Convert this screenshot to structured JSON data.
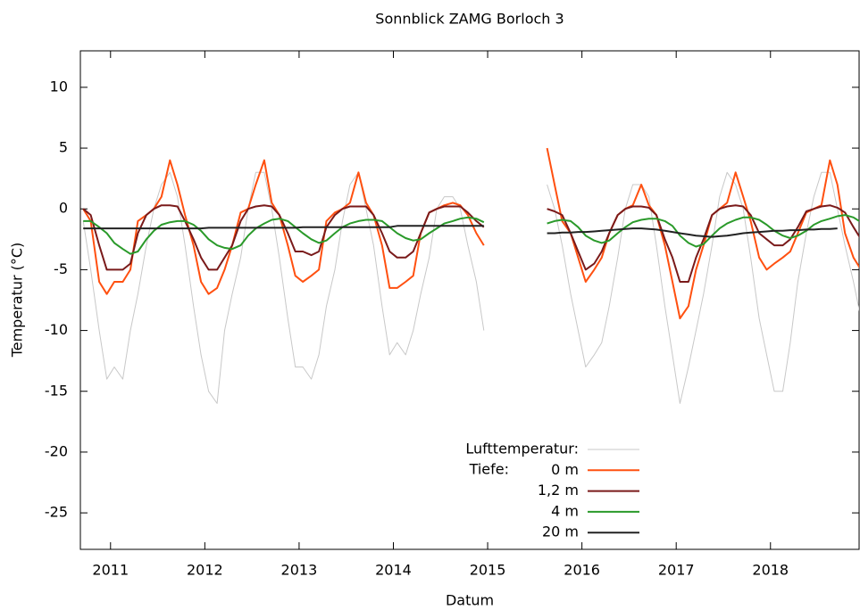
{
  "chart_data": {
    "type": "line",
    "title": "Sonnblick ZAMG Borloch 3",
    "xlabel": "Datum",
    "ylabel": "Temperatur (°C)",
    "legend_label": "Tiefe:",
    "legend_position": "lower center",
    "grid": false,
    "xlim": [
      2010.68,
      2018.94
    ],
    "xticks": [
      2011,
      2012,
      2013,
      2014,
      2015,
      2016,
      2017,
      2018
    ],
    "ylim": [
      -28,
      13
    ],
    "yticks": [
      10,
      5,
      0,
      -5,
      -10,
      -15,
      -20,
      -25
    ],
    "x": [
      2010.71,
      2010.79,
      2010.88,
      2010.96,
      2011.04,
      2011.13,
      2011.21,
      2011.29,
      2011.38,
      2011.46,
      2011.54,
      2011.63,
      2011.71,
      2011.79,
      2011.88,
      2011.96,
      2012.04,
      2012.13,
      2012.21,
      2012.29,
      2012.38,
      2012.46,
      2012.54,
      2012.63,
      2012.71,
      2012.79,
      2012.88,
      2012.96,
      2013.04,
      2013.13,
      2013.21,
      2013.29,
      2013.38,
      2013.46,
      2013.54,
      2013.63,
      2013.71,
      2013.79,
      2013.88,
      2013.96,
      2014.04,
      2014.13,
      2014.21,
      2014.29,
      2014.38,
      2014.46,
      2014.54,
      2014.63,
      2014.71,
      2014.79,
      2014.88,
      2014.96,
      2015.3,
      2015.63,
      2015.71,
      2015.79,
      2015.88,
      2015.96,
      2016.04,
      2016.13,
      2016.21,
      2016.29,
      2016.38,
      2016.46,
      2016.54,
      2016.63,
      2016.71,
      2016.79,
      2016.88,
      2016.96,
      2017.04,
      2017.13,
      2017.21,
      2017.29,
      2017.38,
      2017.46,
      2017.54,
      2017.63,
      2017.71,
      2017.79,
      2017.88,
      2017.96,
      2018.04,
      2018.13,
      2018.21,
      2018.29,
      2018.38,
      2018.46,
      2018.54,
      2018.63,
      2018.71,
      2018.79,
      2018.88,
      2018.96
    ],
    "series": [
      {
        "name": "Lufttemperatur:",
        "color": "#c8c8c8",
        "width": 1,
        "values": [
          -1,
          -5,
          -10,
          -14,
          -13,
          -14,
          -10,
          -7,
          -3,
          0,
          2,
          3,
          1,
          -3,
          -8,
          -12,
          -15,
          -16,
          -10,
          -7,
          -4,
          0,
          3,
          3,
          0,
          -4,
          -9,
          -13,
          -13,
          -14,
          -12,
          -8,
          -5,
          -1,
          2,
          3,
          0,
          -3,
          -8,
          -12,
          -11,
          -12,
          -10,
          -7,
          -4,
          0,
          1,
          1,
          0,
          -3,
          -6,
          -10,
          null,
          2,
          0,
          -3,
          -7,
          -10,
          -13,
          -12,
          -11,
          -8,
          -4,
          0,
          2,
          2,
          1,
          -3,
          -8,
          -12,
          -16,
          -13,
          -10,
          -7,
          -3,
          1,
          3,
          2,
          0,
          -4,
          -9,
          -12,
          -15,
          -15,
          -11,
          -6,
          -2,
          1,
          3,
          3,
          0,
          -3,
          -6,
          -9
        ]
      },
      {
        "name": "0 m",
        "color": "#ff5010",
        "width": 2,
        "values": [
          0,
          -1,
          -6,
          -7,
          -6,
          -6,
          -5,
          -1,
          -0.5,
          0,
          1,
          4,
          2,
          -0.5,
          -3,
          -6,
          -7,
          -6.5,
          -5,
          -3,
          -0.3,
          0,
          2,
          4,
          0.5,
          -0.5,
          -3,
          -5.5,
          -6,
          -5.5,
          -5,
          -1,
          -0.3,
          0,
          0.5,
          3,
          0.5,
          -0.5,
          -3,
          -6.5,
          -6.5,
          -6,
          -5.5,
          -2,
          -0.3,
          0,
          0.3,
          0.5,
          0.3,
          -0.5,
          -2,
          -3,
          null,
          5,
          2,
          -1,
          -2,
          -4,
          -6,
          -5,
          -4,
          -2,
          -0.5,
          0,
          0.3,
          2,
          0.3,
          -0.5,
          -3,
          -6,
          -9,
          -8,
          -5,
          -3,
          -0.5,
          0,
          0.5,
          3,
          1,
          -1,
          -4,
          -5,
          -4.5,
          -4,
          -3.5,
          -2,
          -0.3,
          0,
          0.3,
          4,
          2,
          -2,
          -4,
          -5
        ]
      },
      {
        "name": "1,2 m",
        "color": "#7a1a1a",
        "width": 2,
        "values": [
          0,
          -0.5,
          -3,
          -5,
          -5,
          -5,
          -4.5,
          -2,
          -0.5,
          0,
          0.3,
          0.3,
          0.2,
          -1,
          -2.5,
          -4,
          -5,
          -5,
          -4,
          -3,
          -1,
          0,
          0.2,
          0.3,
          0.2,
          -0.5,
          -2,
          -3.5,
          -3.5,
          -3.8,
          -3.5,
          -1.5,
          -0.5,
          0,
          0.2,
          0.2,
          0.2,
          -0.5,
          -2,
          -3.5,
          -4,
          -4,
          -3.5,
          -2,
          -0.3,
          0,
          0.2,
          0.2,
          0.2,
          -0.3,
          -1,
          -1.5,
          null,
          0,
          -0.2,
          -0.5,
          -2,
          -3.5,
          -5,
          -4.5,
          -3.5,
          -2,
          -0.5,
          0,
          0.2,
          0.2,
          0.1,
          -0.5,
          -2.5,
          -4,
          -6,
          -6,
          -4,
          -2.5,
          -0.5,
          0,
          0.2,
          0.3,
          0.2,
          -0.5,
          -2,
          -2.5,
          -3,
          -3,
          -2.5,
          -1.5,
          -0.2,
          0,
          0.2,
          0.3,
          0.1,
          -0.3,
          -1.5,
          -2.5
        ]
      },
      {
        "name": "4 m",
        "color": "#2a9a2a",
        "width": 2,
        "values": [
          -1,
          -1,
          -1.5,
          -2,
          -2.8,
          -3.3,
          -3.7,
          -3.5,
          -2.5,
          -1.8,
          -1.3,
          -1.1,
          -1,
          -1,
          -1.3,
          -1.8,
          -2.5,
          -3,
          -3.2,
          -3.3,
          -3,
          -2.2,
          -1.6,
          -1.2,
          -0.9,
          -0.8,
          -1,
          -1.5,
          -2,
          -2.5,
          -2.8,
          -2.6,
          -2,
          -1.5,
          -1.2,
          -1,
          -0.9,
          -0.9,
          -1,
          -1.5,
          -2,
          -2.4,
          -2.6,
          -2.5,
          -2,
          -1.6,
          -1.2,
          -1,
          -0.8,
          -0.7,
          -0.8,
          -1.1,
          null,
          -1.2,
          -1,
          -0.9,
          -1,
          -1.5,
          -2.2,
          -2.6,
          -2.8,
          -2.6,
          -2,
          -1.5,
          -1.1,
          -0.9,
          -0.8,
          -0.8,
          -1,
          -1.4,
          -2.2,
          -2.8,
          -3.1,
          -2.9,
          -2.2,
          -1.6,
          -1.2,
          -0.9,
          -0.7,
          -0.7,
          -0.9,
          -1.3,
          -1.8,
          -2.2,
          -2.4,
          -2.2,
          -1.8,
          -1.3,
          -1,
          -0.8,
          -0.6,
          -0.5,
          -0.7,
          -1.1
        ]
      },
      {
        "name": "20 m",
        "color": "#222222",
        "width": 2,
        "values": [
          -1.6,
          -1.6,
          -1.6,
          -1.6,
          -1.6,
          -1.6,
          -1.6,
          -1.6,
          -1.6,
          -1.6,
          -1.6,
          -1.6,
          -1.6,
          -1.6,
          -1.6,
          -1.6,
          -1.55,
          -1.55,
          -1.55,
          -1.55,
          -1.55,
          -1.55,
          -1.55,
          -1.55,
          -1.55,
          -1.55,
          -1.55,
          -1.55,
          -1.5,
          -1.5,
          -1.5,
          -1.5,
          -1.5,
          -1.5,
          -1.5,
          -1.5,
          -1.5,
          -1.5,
          -1.5,
          -1.5,
          -1.4,
          -1.4,
          -1.4,
          -1.4,
          -1.4,
          -1.4,
          -1.4,
          -1.4,
          -1.4,
          -1.4,
          -1.4,
          -1.4,
          null,
          -2,
          -2,
          -1.95,
          -1.95,
          -1.9,
          -1.9,
          -1.85,
          -1.8,
          -1.75,
          -1.7,
          -1.65,
          -1.6,
          -1.6,
          -1.65,
          -1.7,
          -1.8,
          -1.9,
          -2,
          -2.1,
          -2.2,
          -2.25,
          -2.3,
          -2.25,
          -2.2,
          -2.1,
          -2,
          -1.95,
          -1.9,
          -1.85,
          -1.8,
          -1.8,
          -1.75,
          -1.75,
          -1.7,
          -1.7,
          -1.65,
          -1.65,
          -1.6,
          null,
          null,
          null
        ]
      }
    ]
  }
}
